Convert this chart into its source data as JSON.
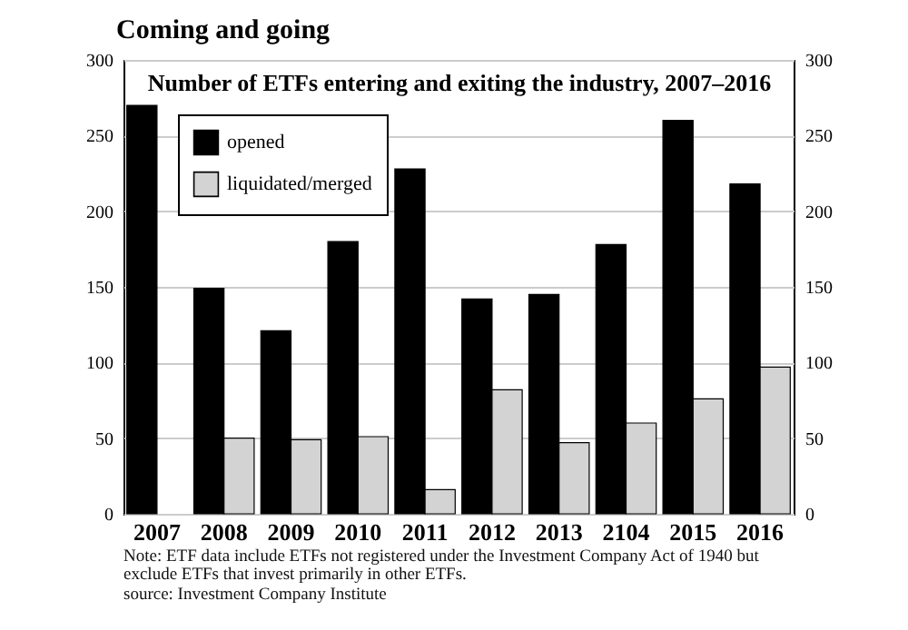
{
  "chart_data": {
    "type": "bar",
    "title": "Coming and going",
    "subtitle": "Number of ETFs entering and exiting the industry, 2007–2016",
    "categories": [
      "2007",
      "2008",
      "2009",
      "2010",
      "2011",
      "2012",
      "2013",
      "2104",
      "2015",
      "2016"
    ],
    "series": [
      {
        "name": "opened",
        "color": "#000000",
        "values": [
          270,
          149,
          121,
          180,
          228,
          142,
          145,
          178,
          260,
          218
        ]
      },
      {
        "name": "liquidated/merged",
        "color": "#d3d3d3",
        "values": [
          null,
          50,
          49,
          51,
          16,
          82,
          47,
          60,
          76,
          97
        ]
      }
    ],
    "ylim": [
      0,
      300
    ],
    "yticks": [
      0,
      50,
      100,
      150,
      200,
      250,
      300
    ],
    "y2lim": [
      0,
      300
    ],
    "y2ticks": [
      0,
      50,
      100,
      150,
      200,
      250,
      300
    ],
    "grid": "y",
    "legend": "top left",
    "annotations": [
      "Note: ETF data include ETFs not registered under the Investment Company Act of 1940 but exclude ETFs that invest primarily in other ETFs.",
      "source: Investment Company Institute"
    ]
  }
}
